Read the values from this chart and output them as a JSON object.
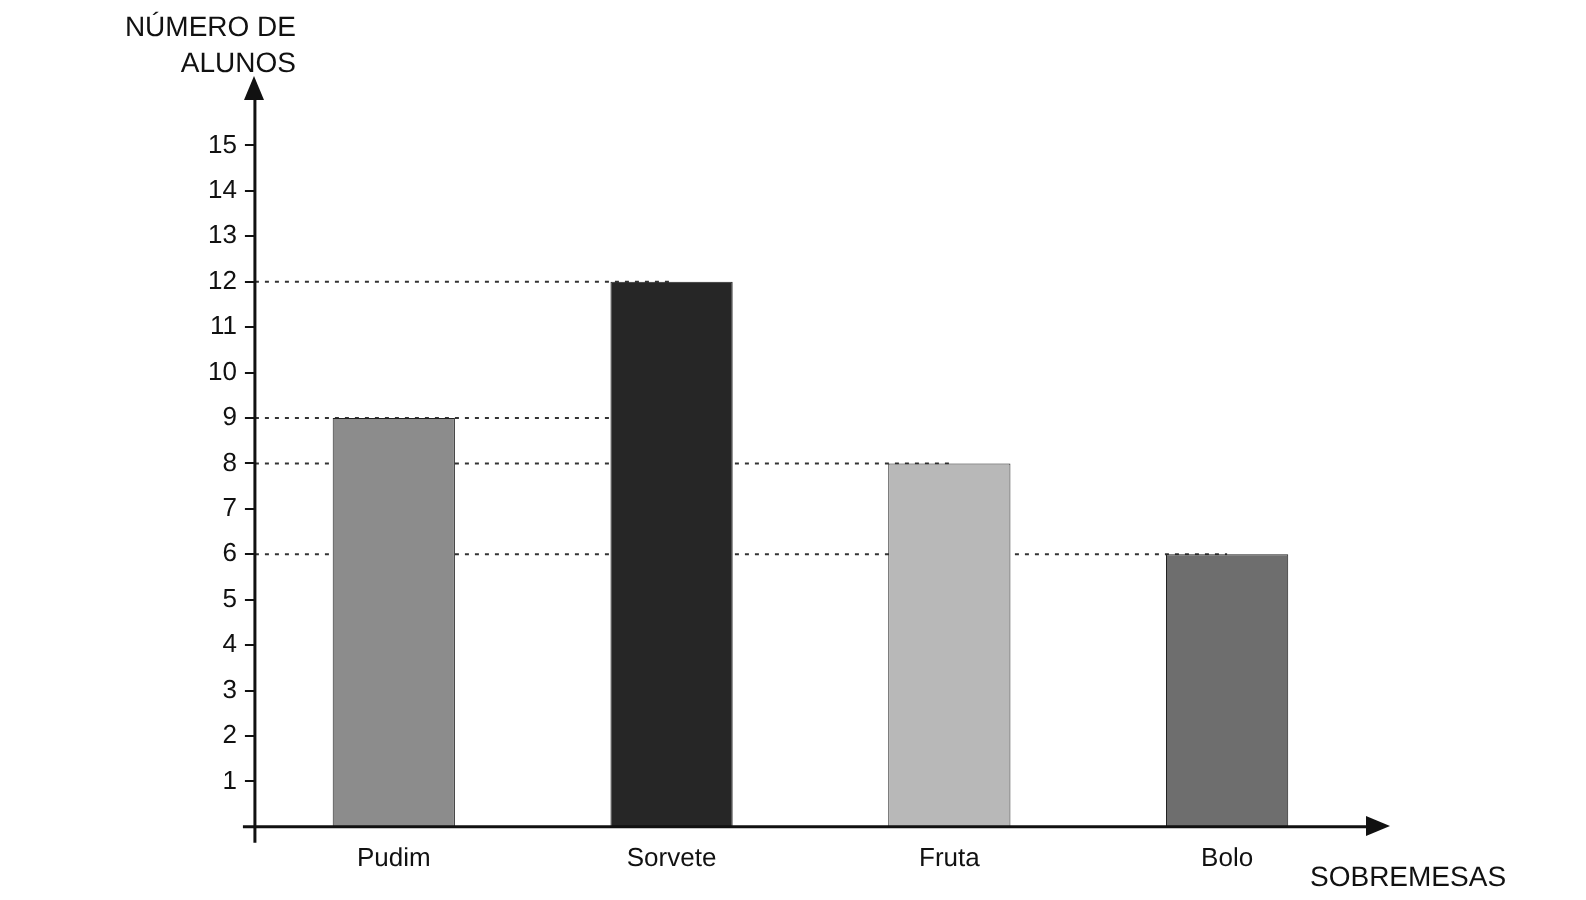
{
  "chart_data": {
    "type": "bar",
    "xlabel": "SOBREMESAS",
    "ylabel": "NÚMERO DE ALUNOS",
    "categories": [
      "Pudim",
      "Sorvete",
      "Fruta",
      "Bolo"
    ],
    "values": [
      9,
      12,
      8,
      6
    ],
    "colors": [
      "#8c8c8c",
      "#262626",
      "#b8b8b8",
      "#6e6e6e"
    ],
    "ylim": [
      0,
      16
    ],
    "yticks": [
      1,
      2,
      3,
      4,
      5,
      6,
      7,
      8,
      9,
      10,
      11,
      12,
      13,
      14,
      15
    ],
    "grid": false,
    "legend": false,
    "ref_lines": [
      {
        "axis": "y",
        "value": 12,
        "line_style": "dotted"
      },
      {
        "axis": "y",
        "value": 9,
        "line_style": "dotted"
      },
      {
        "axis": "y",
        "value": 8,
        "line_style": "dotted"
      },
      {
        "axis": "y",
        "value": 6,
        "line_style": "dotted"
      }
    ]
  }
}
